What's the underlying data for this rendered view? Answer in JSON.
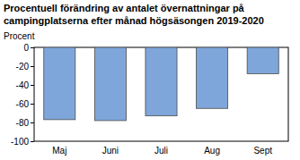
{
  "chart_data": {
    "type": "bar",
    "title": "Procentuell förändring av antalet övernattningar på\ncampingplatserna efter månad högsäsongen 2019-2020",
    "ylabel": "Procent",
    "categories": [
      "Maj",
      "Juni",
      "Juli",
      "Aug",
      "Sept"
    ],
    "values": [
      -77,
      -78,
      -73,
      -65,
      -28
    ],
    "color": "#7fa6da",
    "ylim": [
      -100,
      0
    ],
    "yticks": [
      -100,
      -80,
      -60,
      -40,
      -20,
      0
    ],
    "grid": false
  }
}
